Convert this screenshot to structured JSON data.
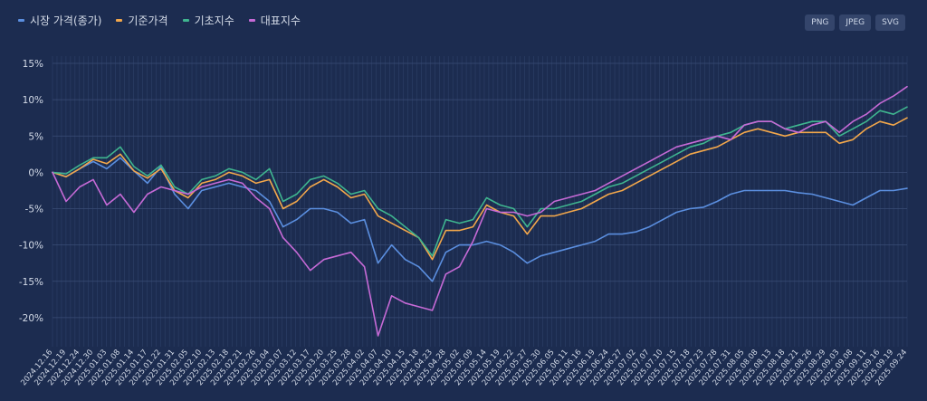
{
  "legend": {
    "items": [
      {
        "label": "시장 가격(종가)",
        "color": "#5b8fe0"
      },
      {
        "label": "기준가격",
        "color": "#f2a74b"
      },
      {
        "label": "기초지수",
        "color": "#3fb58f"
      },
      {
        "label": "대표지수",
        "color": "#c66ad6"
      }
    ]
  },
  "export": {
    "png": "PNG",
    "jpeg": "JPEG",
    "svg": "SVG"
  },
  "chart_data": {
    "type": "line",
    "title": "",
    "xlabel": "",
    "ylabel": "",
    "ylim": [
      -24,
      16
    ],
    "yticks": [
      15,
      10,
      5,
      0,
      -5,
      -10,
      -15,
      -20
    ],
    "ytick_labels": [
      "15%",
      "10%",
      "5%",
      "0%",
      "-5%",
      "-10%",
      "-15%",
      "-20%"
    ],
    "grid": true,
    "x_labels": [
      "2024.12.16",
      "2024.12.19",
      "2024.12.24",
      "2024.12.30",
      "2025.01.03",
      "2025.01.08",
      "2025.01.14",
      "2025.01.17",
      "2025.01.22",
      "2025.01.31",
      "2025.02.05",
      "2025.02.10",
      "2025.02.13",
      "2025.02.18",
      "2025.02.21",
      "2025.02.26",
      "2025.03.04",
      "2025.03.07",
      "2025.03.12",
      "2025.03.17",
      "2025.03.20",
      "2025.03.25",
      "2025.03.28",
      "2025.04.02",
      "2025.04.07",
      "2025.04.10",
      "2025.04.15",
      "2025.04.18",
      "2025.04.23",
      "2025.04.28",
      "2025.05.02",
      "2025.05.09",
      "2025.05.14",
      "2025.05.19",
      "2025.05.22",
      "2025.05.27",
      "2025.05.30",
      "2025.06.05",
      "2025.06.11",
      "2025.06.16",
      "2025.06.19",
      "2025.06.24",
      "2025.06.27",
      "2025.07.02",
      "2025.07.07",
      "2025.07.10",
      "2025.07.15",
      "2025.07.18",
      "2025.07.23",
      "2025.07.28",
      "2025.07.31",
      "2025.08.05",
      "2025.08.08",
      "2025.08.13",
      "2025.08.18",
      "2025.08.21",
      "2025.08.26",
      "2025.08.29",
      "2025.09.03",
      "2025.09.08",
      "2025.09.11",
      "2025.09.16",
      "2025.09.19",
      "2025.09.24"
    ],
    "series": [
      {
        "name": "시장 가격(종가)",
        "color": "#5b8fe0",
        "values": [
          0,
          -0.6,
          0.5,
          1.5,
          0.5,
          2.0,
          0.2,
          -1.5,
          0.8,
          -3,
          -5,
          -2.5,
          -2,
          -1.5,
          -2,
          -2.5,
          -4,
          -7.5,
          -6.5,
          -5,
          -5,
          -5.5,
          -7,
          -6.5,
          -12.5,
          -10,
          -12,
          -13,
          -15,
          -11,
          -10,
          -10,
          -9.5,
          -10,
          -11,
          -12.5,
          -11.5,
          -11,
          -10.5,
          -10,
          -9.5,
          -8.5,
          -8.5,
          -8.2,
          -7.5,
          -6.5,
          -5.5,
          -5,
          -4.8,
          -4,
          -3,
          -2.5,
          -2.5,
          -2.5,
          -2.5,
          -2.8,
          -3,
          -3.5,
          -4,
          -4.5,
          -3.5,
          -2.5,
          -2.5,
          -2.2
        ]
      },
      {
        "name": "기준가격",
        "color": "#f2a74b",
        "values": [
          0,
          -0.6,
          0.5,
          1.8,
          1.2,
          2.5,
          0.2,
          -0.8,
          0.5,
          -2.5,
          -3.5,
          -1.5,
          -1,
          0,
          -0.5,
          -1.5,
          -1,
          -5,
          -4,
          -2,
          -1,
          -2,
          -3.5,
          -3,
          -6,
          -7,
          -8,
          -9,
          -12,
          -8,
          -8,
          -7.5,
          -4.5,
          -5.5,
          -6,
          -8.5,
          -6,
          -6,
          -5.5,
          -5,
          -4,
          -3,
          -2.5,
          -1.5,
          -0.5,
          0.5,
          1.5,
          2.5,
          3,
          3.5,
          4.5,
          5.5,
          6,
          5.5,
          5,
          5.5,
          5.5,
          5.5,
          4,
          4.5,
          6,
          7,
          6.5,
          7.5
        ]
      },
      {
        "name": "기초지수",
        "color": "#3fb58f",
        "values": [
          0,
          -0.2,
          1.0,
          2.0,
          2.0,
          3.5,
          0.8,
          -0.5,
          1.0,
          -2,
          -3,
          -1,
          -0.5,
          0.5,
          0,
          -1,
          0.5,
          -4,
          -3,
          -1,
          -0.5,
          -1.5,
          -3,
          -2.5,
          -5,
          -6,
          -7.5,
          -9,
          -11.5,
          -6.5,
          -7,
          -6.5,
          -3.5,
          -4.5,
          -5,
          -7.5,
          -5,
          -5,
          -4.5,
          -4,
          -3,
          -2,
          -1.5,
          -0.5,
          0.5,
          1.5,
          2.5,
          3.5,
          4,
          5,
          5.5,
          6.5,
          7,
          7,
          6,
          6.5,
          7,
          7,
          5,
          6,
          7,
          8.5,
          8,
          9
        ]
      },
      {
        "name": "대표지수",
        "color": "#c66ad6",
        "values": [
          0,
          -4,
          -2,
          -1,
          -4.5,
          -3,
          -5.5,
          -3,
          -2,
          -2.5,
          -3,
          -2,
          -1.5,
          -1,
          -1.5,
          -3.5,
          -5,
          -9,
          -11,
          -13.5,
          -12,
          -11.5,
          -11,
          -13,
          -22.5,
          -17,
          -18,
          -18.5,
          -19,
          -14,
          -13,
          -9.5,
          -5,
          -5.5,
          -5.5,
          -6,
          -5.5,
          -4,
          -3.5,
          -3,
          -2.5,
          -1.5,
          -0.5,
          0.5,
          1.5,
          2.5,
          3.5,
          4,
          4.5,
          5,
          4.5,
          6.5,
          7,
          7,
          6,
          5.5,
          6.5,
          7,
          5.5,
          7,
          8,
          9.5,
          10.5,
          11.8
        ]
      }
    ]
  }
}
